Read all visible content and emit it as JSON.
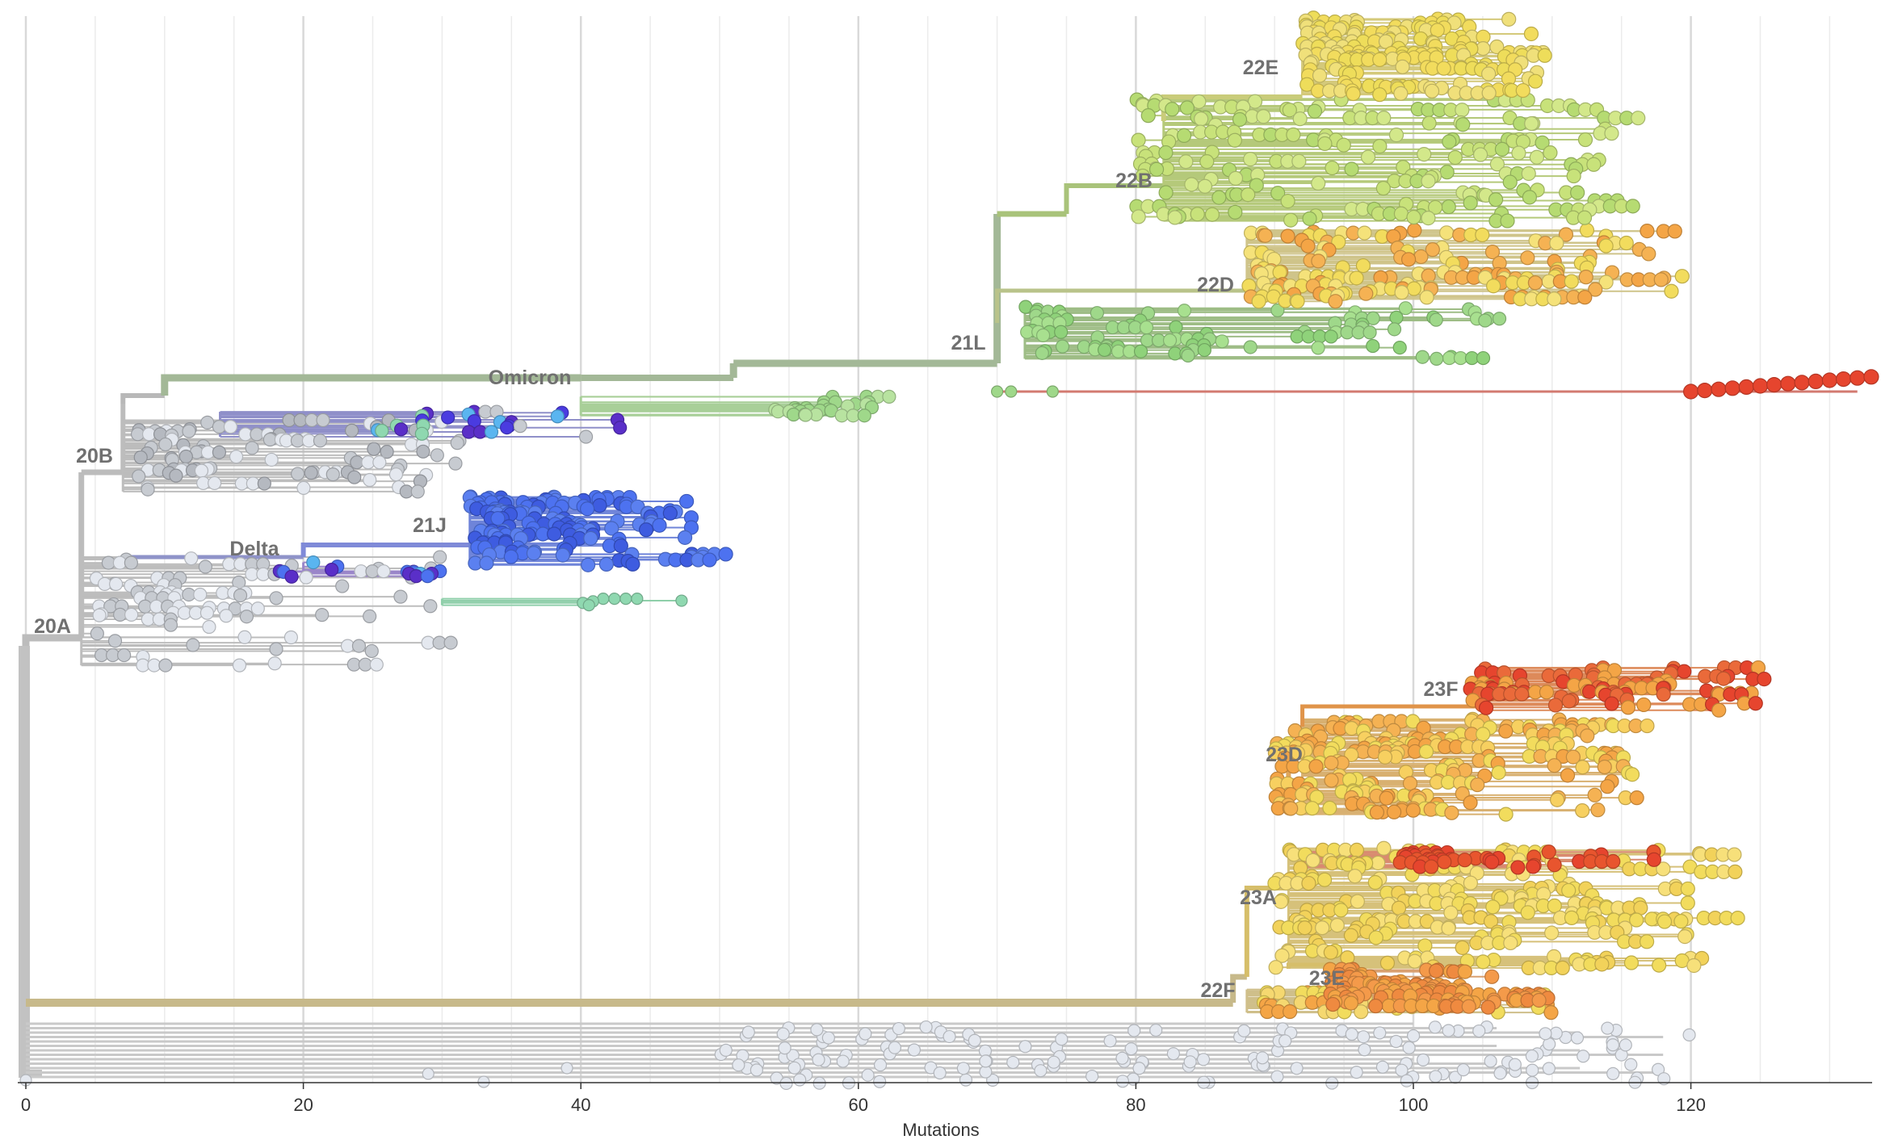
{
  "chart_data": {
    "type": "scatter",
    "subtype": "phylogenetic-tree",
    "title": "",
    "xlabel": "Mutations",
    "ylabel": "",
    "xlim": [
      0,
      133
    ],
    "x_ticks": [
      "0",
      "20",
      "40",
      "60",
      "80",
      "100",
      "120"
    ],
    "x_tick_values": [
      0,
      20,
      40,
      60,
      80,
      100,
      120
    ],
    "grid": true,
    "legend": "none",
    "clades": [
      {
        "name": "20A",
        "x": 0,
        "color": "#b5b5b5"
      },
      {
        "name": "20B",
        "x": 4,
        "color": "#b0b0b0"
      },
      {
        "name": "Omicron",
        "x": 40,
        "color": "#a3b897"
      },
      {
        "name": "Delta",
        "x": 20,
        "color": "#8f93c9"
      },
      {
        "name": "21J",
        "x": 32,
        "color": "#5472e6"
      },
      {
        "name": "21L",
        "x": 70,
        "color": "#a3b897"
      },
      {
        "name": "22B",
        "x": 82,
        "color": "#a9c37a"
      },
      {
        "name": "22E",
        "x": 92,
        "color": "#e0d86a"
      },
      {
        "name": "22D",
        "x": 88,
        "color": "#c6c97a"
      },
      {
        "name": "22F",
        "x": 88,
        "color": "#c7b98a"
      },
      {
        "name": "23A",
        "x": 91,
        "color": "#d6be6a"
      },
      {
        "name": "23D",
        "x": 91,
        "color": "#e0a65a"
      },
      {
        "name": "23E",
        "x": 94,
        "color": "#e08a45"
      },
      {
        "name": "23F",
        "x": 105,
        "color": "#e56a3a"
      }
    ],
    "colors": {
      "root": "#bcbcbc",
      "tip_grey": "#c7cbd1",
      "tip_light": "#e4e8ef",
      "green": "#9fd88a",
      "yellow_green": "#c8e27a",
      "yellow": "#f2dc5d",
      "orange": "#f4a546",
      "red": "#e6452e",
      "blue": "#4d72f0",
      "purple": "#5a2fc8",
      "teal": "#8fd8b0"
    }
  }
}
